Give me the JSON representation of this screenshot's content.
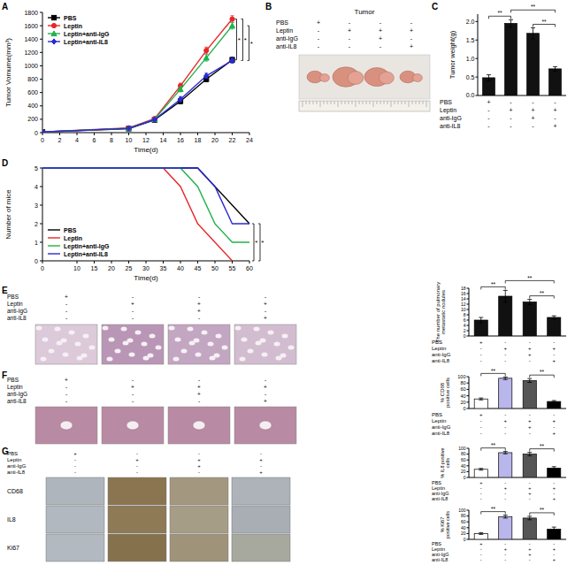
{
  "chart_data": [
    {
      "type": "line",
      "x_label": "Time(d)",
      "y_label": "Tumor Vomume(mm³)",
      "x": [
        0,
        10,
        13,
        16,
        19,
        22
      ],
      "xlim": [
        0,
        24
      ],
      "xticks": [
        0,
        2,
        4,
        6,
        8,
        10,
        12,
        14,
        16,
        18,
        20,
        22,
        24
      ],
      "ylim": [
        0,
        1800
      ],
      "yticks": [
        0,
        200,
        400,
        600,
        800,
        1000,
        1200,
        1400,
        1600,
        1800
      ],
      "legend": "upper left",
      "series": [
        {
          "name": "PBS",
          "color": "#000000",
          "marker": "square",
          "values": [
            10,
            60,
            190,
            470,
            800,
            1090
          ],
          "errors": [
            5,
            10,
            20,
            40,
            40,
            40
          ]
        },
        {
          "name": "Leptin",
          "color": "#e8262a",
          "marker": "circle",
          "values": [
            10,
            70,
            210,
            700,
            1230,
            1700
          ],
          "errors": [
            5,
            10,
            20,
            40,
            50,
            50
          ]
        },
        {
          "name": "Leptin+anti-IgG",
          "color": "#22b14c",
          "marker": "triangle",
          "values": [
            10,
            65,
            200,
            650,
            1120,
            1600
          ],
          "errors": [
            5,
            10,
            20,
            40,
            50,
            50
          ]
        },
        {
          "name": "Leptin+anti-IL8",
          "color": "#2a2ad4",
          "marker": "diamond",
          "values": [
            10,
            65,
            195,
            500,
            850,
            1080
          ],
          "errors": [
            5,
            10,
            20,
            40,
            40,
            40
          ]
        }
      ],
      "annotations": [
        {
          "text": "*",
          "series": [
            1,
            0
          ]
        },
        {
          "text": "*",
          "series": [
            1,
            3
          ]
        },
        {
          "text": "*",
          "series": [
            2,
            3
          ]
        }
      ]
    },
    {
      "type": "bar",
      "y_label": "Tumor weight(g)",
      "categories": [
        null,
        null,
        null,
        null
      ],
      "values": [
        0.48,
        1.95,
        1.68,
        0.72
      ],
      "errors": [
        0.08,
        0.1,
        0.15,
        0.06
      ],
      "colors": [
        "#111111",
        "#111111",
        "#111111",
        "#111111"
      ],
      "ylim": [
        0,
        2.2
      ],
      "yticks": [
        {
          "value": 0,
          "label": "0.0"
        },
        0.5,
        {
          "value": 1,
          "label": "1.0"
        },
        1.5,
        {
          "value": 2,
          "label": "2.0"
        }
      ],
      "annotations": [
        {
          "text": "**",
          "between": [
            0,
            1
          ]
        },
        {
          "text": "**",
          "between": [
            2,
            3
          ]
        },
        {
          "text": "**",
          "between": [
            1,
            3
          ]
        }
      ]
    },
    {
      "type": "line",
      "x_label": "Time(d)",
      "y_label": "Number of mice",
      "x": [
        0,
        10,
        15,
        20,
        25,
        30,
        35,
        40,
        45,
        50,
        55,
        60
      ],
      "xlim": [
        0,
        60
      ],
      "xticks": [
        0,
        10,
        15,
        20,
        25,
        30,
        35,
        40,
        45,
        50,
        55,
        60
      ],
      "ylim": [
        0,
        5
      ],
      "yticks": [
        0,
        1,
        2,
        3,
        4,
        5
      ],
      "legend": "lower left",
      "marker": "none",
      "series": [
        {
          "name": "PBS",
          "color": "#000000",
          "values": [
            5,
            5,
            5,
            5,
            5,
            5,
            5,
            5,
            5,
            4,
            3,
            2
          ]
        },
        {
          "name": "Leptin",
          "color": "#e8262a",
          "values": [
            5,
            5,
            5,
            5,
            5,
            5,
            5,
            4,
            2,
            1,
            0,
            null
          ]
        },
        {
          "name": "Leptin+anti-IgG",
          "color": "#22b14c",
          "values": [
            5,
            5,
            5,
            5,
            5,
            5,
            5,
            5,
            4,
            2,
            1,
            1
          ]
        },
        {
          "name": "Leptin+anti-IL8",
          "color": "#2a2ad4",
          "values": [
            5,
            5,
            5,
            5,
            5,
            5,
            5,
            5,
            5,
            4,
            2,
            2
          ]
        }
      ],
      "annotations": [
        {
          "text": "*",
          "series": [
            1,
            0
          ]
        },
        {
          "text": "*",
          "series": [
            1,
            3
          ]
        }
      ]
    },
    {
      "type": "bar",
      "y_label": "The number of pulmonary metastatic nodules",
      "categories": [
        null,
        null,
        null,
        null
      ],
      "values": [
        6,
        15,
        12.8,
        7
      ],
      "errors": [
        1,
        2.2,
        1,
        0.6
      ],
      "colors": [
        "#111111",
        "#111111",
        "#111111",
        "#111111"
      ],
      "ylim": [
        0,
        18
      ],
      "yticks": [
        0,
        2,
        4,
        6,
        8,
        10,
        12,
        14,
        16,
        18
      ],
      "annotations": [
        {
          "text": "**",
          "between": [
            0,
            1
          ]
        },
        {
          "text": "**",
          "between": [
            2,
            3
          ]
        },
        {
          "text": "**",
          "between": [
            1,
            3
          ]
        }
      ]
    },
    {
      "type": "bar",
      "y_label": "% CD68 positive cells",
      "categories": [
        null,
        null,
        null,
        null
      ],
      "values": [
        30,
        95,
        88,
        22
      ],
      "errors": [
        3,
        4,
        6,
        3
      ],
      "colors": [
        "#ffffff",
        "#b8b6ea",
        "#555555",
        "#000000"
      ],
      "ylim": [
        0,
        100
      ],
      "yticks": [
        0,
        20,
        40,
        60,
        80,
        100
      ],
      "annotations": [
        {
          "text": "**",
          "between": [
            0,
            1
          ]
        },
        {
          "text": "**",
          "between": [
            2,
            3
          ]
        }
      ]
    },
    {
      "type": "bar",
      "y_label": "% IL8 positive cells",
      "categories": [
        null,
        null,
        null,
        null
      ],
      "values": [
        28,
        85,
        80,
        32
      ],
      "errors": [
        3,
        4,
        6,
        5
      ],
      "colors": [
        "#ffffff",
        "#b8b6ea",
        "#555555",
        "#000000"
      ],
      "ylim": [
        0,
        100
      ],
      "yticks": [
        0,
        20,
        40,
        60,
        80,
        100
      ],
      "annotations": [
        {
          "text": "**",
          "between": [
            0,
            1
          ]
        },
        {
          "text": "**",
          "between": [
            2,
            3
          ]
        }
      ]
    },
    {
      "type": "bar",
      "y_label": "% Ki67 positive cells",
      "categories": [
        null,
        null,
        null,
        null
      ],
      "values": [
        20,
        78,
        73,
        35
      ],
      "errors": [
        3,
        5,
        6,
        7
      ],
      "colors": [
        "#ffffff",
        "#b8b6ea",
        "#555555",
        "#000000"
      ],
      "ylim": [
        0,
        100
      ],
      "yticks": [
        0,
        20,
        40,
        60,
        80,
        100
      ],
      "annotations": [
        {
          "text": "**",
          "between": [
            0,
            1
          ]
        },
        {
          "text": "**",
          "between": [
            2,
            3
          ]
        }
      ]
    }
  ],
  "figure": {
    "panel_labels": [
      "A",
      "B",
      "C",
      "D",
      "E",
      "F",
      "G"
    ],
    "treatments": {
      "labels": [
        "PBS",
        "Leptin",
        "anti-IgG",
        "anti-IL8"
      ],
      "signs": [
        [
          "+",
          "-",
          "-",
          "-"
        ],
        [
          "-",
          "+",
          "+",
          "+"
        ],
        [
          "-",
          "-",
          "+",
          "-"
        ],
        [
          "-",
          "-",
          "-",
          "+"
        ]
      ]
    },
    "tumor_title": "Tumor",
    "stain_rows": [
      "CD68",
      "IL8",
      "Ki67"
    ]
  }
}
